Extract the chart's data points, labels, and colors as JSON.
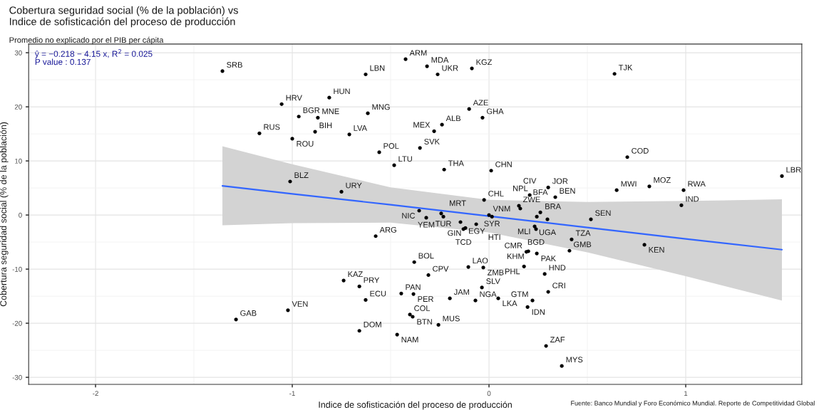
{
  "chart_data": {
    "type": "scatter",
    "title": "Cobertura seguridad social (% de la población) vs\nIndice de sofisticación del proceso de producción",
    "subtitle": "Promedio no explicado por el PIB per cápita",
    "xlabel": "Indice de sofisticación del proceso de producción",
    "ylabel": "Cobertura seguridad social (% de la población)",
    "xlim": [
      -2.34,
      1.59
    ],
    "ylim": [
      -31.3,
      31.6
    ],
    "xticks": [
      -2,
      -1,
      0,
      1
    ],
    "yticks": [
      -30,
      -20,
      -10,
      0,
      10,
      20,
      30
    ],
    "grid": true,
    "series": [
      {
        "marker": "circle",
        "color": "#000000",
        "x": [
          -0.424,
          -0.315,
          -1.355,
          -0.627,
          -0.261,
          -0.087,
          0.638,
          -0.812,
          -1.054,
          -0.967,
          -0.87,
          -0.616,
          -0.101,
          -0.033,
          -0.239,
          -1.167,
          -0.884,
          -0.71,
          -1.0,
          -0.279,
          -0.351,
          -0.558,
          -0.482,
          -0.228,
          0.011,
          0.703,
          1.489,
          -1.011,
          -0.75,
          -0.355,
          -0.243,
          -0.232,
          -0.319,
          -0.145,
          -0.065,
          -0.12,
          -0.13,
          0.0,
          0.015,
          -0.025,
          0.152,
          0.159,
          0.207,
          0.301,
          0.337,
          0.649,
          0.815,
          0.989,
          0.978,
          0.243,
          0.261,
          0.297,
          0.232,
          0.239,
          0.518,
          0.42,
          0.409,
          0.79,
          0.19,
          0.2,
          0.243,
          -0.576,
          0.178,
          -0.105,
          -0.029,
          0.283,
          -0.308,
          -0.38,
          -0.036,
          0.301,
          0.221,
          -0.199,
          -0.069,
          0.047,
          0.196,
          -0.739,
          -0.659,
          -0.446,
          -0.384,
          -0.627,
          -1.022,
          -1.286,
          -0.402,
          -0.388,
          -0.257,
          -0.659,
          -0.467,
          0.29,
          0.37
        ],
        "values": [
          28.8,
          27.5,
          26.6,
          26.0,
          26.0,
          27.1,
          26.1,
          21.7,
          20.5,
          18.2,
          18.0,
          18.8,
          19.6,
          18.0,
          16.7,
          15.1,
          15.4,
          14.9,
          14.1,
          15.5,
          12.4,
          11.6,
          9.2,
          8.4,
          8.2,
          10.7,
          7.2,
          6.2,
          4.3,
          0.8,
          0.3,
          -0.3,
          -0.5,
          -1.3,
          -1.7,
          -2.4,
          -2.6,
          0.0,
          -0.3,
          2.8,
          1.7,
          1.2,
          3.7,
          5.1,
          3.3,
          4.6,
          5.3,
          4.6,
          1.8,
          -0.3,
          0.5,
          -0.8,
          -2.1,
          -2.6,
          -0.8,
          -4.5,
          -6.6,
          -5.5,
          -6.8,
          -6.7,
          -7.1,
          -3.9,
          -9.5,
          -9.6,
          -9.7,
          -10.9,
          -11.1,
          -8.7,
          -13.4,
          -14.2,
          -15.8,
          -15.4,
          -15.8,
          -15.4,
          -17.0,
          -12.1,
          -13.2,
          -14.5,
          -14.6,
          -15.7,
          -17.6,
          -19.3,
          -18.4,
          -18.8,
          -20.3,
          -21.4,
          -22.1,
          -24.2,
          -27.9
        ]
      },
      {
        "type": "line",
        "marker": "none",
        "color": "#3366ff",
        "x": [
          -1.355,
          -1,
          -0.5,
          0,
          0.5,
          1,
          1.489
        ],
        "values": [
          5.4,
          3.9,
          1.9,
          -0.2,
          -2.3,
          -4.4,
          -6.4
        ],
        "lower": [
          -1.9,
          -1.5,
          -1.4,
          -3.2,
          -6.9,
          -11.3,
          -15.8
        ],
        "upper": [
          12.7,
          9.4,
          5.1,
          2.8,
          2.4,
          2.6,
          2.9
        ]
      }
    ],
    "annotations": [
      "ŷ = −0.218 − 4.15 x, R$^{2}$ = 0.025",
      "P value : 0.137",
      {
        "text": "ARM",
        "x": -0.424,
        "y": 28.8
      },
      {
        "text": "MDA",
        "x": -0.315,
        "y": 27.5
      },
      {
        "text": "SRB",
        "x": -1.355,
        "y": 26.6
      },
      {
        "text": "LBN",
        "x": -0.627,
        "y": 26.0
      },
      {
        "text": "UKR",
        "x": -0.261,
        "y": 26.0
      },
      {
        "text": "KGZ",
        "x": -0.087,
        "y": 27.1
      },
      {
        "text": "TJK",
        "x": 0.638,
        "y": 26.1
      },
      {
        "text": "HUN",
        "x": -0.812,
        "y": 21.7
      },
      {
        "text": "HRV",
        "x": -1.054,
        "y": 20.5
      },
      {
        "text": "BGR",
        "x": -0.967,
        "y": 18.2
      },
      {
        "text": "MNE",
        "x": -0.87,
        "y": 18.0
      },
      {
        "text": "MNG",
        "x": -0.616,
        "y": 18.8
      },
      {
        "text": "AZE",
        "x": -0.101,
        "y": 19.6
      },
      {
        "text": "GHA",
        "x": -0.033,
        "y": 18.0
      },
      {
        "text": "ALB",
        "x": -0.239,
        "y": 16.7
      },
      {
        "text": "RUS",
        "x": -1.167,
        "y": 15.1
      },
      {
        "text": "BIH",
        "x": -0.884,
        "y": 15.4
      },
      {
        "text": "LVA",
        "x": -0.71,
        "y": 14.9
      },
      {
        "text": "ROU",
        "x": -1.0,
        "y": 14.1
      },
      {
        "text": "MEX",
        "x": -0.279,
        "y": 15.5
      },
      {
        "text": "SVK",
        "x": -0.351,
        "y": 12.4
      },
      {
        "text": "POL",
        "x": -0.558,
        "y": 11.6
      },
      {
        "text": "LTU",
        "x": -0.482,
        "y": 9.2
      },
      {
        "text": "THA",
        "x": -0.228,
        "y": 8.4
      },
      {
        "text": "CHN",
        "x": 0.011,
        "y": 8.2
      },
      {
        "text": "COD",
        "x": 0.703,
        "y": 10.7
      },
      {
        "text": "LBR",
        "x": 1.489,
        "y": 7.2
      },
      {
        "text": "BLZ",
        "x": -1.011,
        "y": 6.2
      },
      {
        "text": "URY",
        "x": -0.75,
        "y": 4.3
      },
      {
        "text": "NIC",
        "x": -0.355,
        "y": 0.8
      },
      {
        "text": "MRT",
        "x": -0.243,
        "y": 0.3
      },
      {
        "text": "TUR",
        "x": -0.232,
        "y": -0.3
      },
      {
        "text": "YEM",
        "x": -0.319,
        "y": -0.5
      },
      {
        "text": "EGY",
        "x": -0.145,
        "y": -1.3
      },
      {
        "text": "HTI",
        "x": -0.065,
        "y": -1.7
      },
      {
        "text": "GIN",
        "x": -0.12,
        "y": -2.4
      },
      {
        "text": "TCD",
        "x": -0.13,
        "y": -2.6
      },
      {
        "text": "VNM",
        "x": 0.0,
        "y": 0.0
      },
      {
        "text": "SYR",
        "x": 0.015,
        "y": -0.3
      },
      {
        "text": "CHL",
        "x": -0.025,
        "y": 2.8
      },
      {
        "text": "ZWE",
        "x": 0.152,
        "y": 1.7
      },
      {
        "text": "NPL",
        "x": 0.159,
        "y": 1.2
      },
      {
        "text": "CIV",
        "x": 0.207,
        "y": 3.7
      },
      {
        "text": "JOR",
        "x": 0.301,
        "y": 5.1
      },
      {
        "text": "BEN",
        "x": 0.337,
        "y": 3.3
      },
      {
        "text": "MWI",
        "x": 0.649,
        "y": 4.6
      },
      {
        "text": "MOZ",
        "x": 0.815,
        "y": 5.3
      },
      {
        "text": "RWA",
        "x": 0.989,
        "y": 4.6
      },
      {
        "text": "IND",
        "x": 0.978,
        "y": 1.8
      },
      {
        "text": "BRA",
        "x": 0.243,
        "y": -0.3
      },
      {
        "text": "BFA",
        "x": 0.261,
        "y": 0.5
      },
      {
        "text": "UGA",
        "x": 0.297,
        "y": -0.8
      },
      {
        "text": "MLI",
        "x": 0.232,
        "y": -2.1
      },
      {
        "text": "BGD",
        "x": 0.239,
        "y": -2.6
      },
      {
        "text": "SEN",
        "x": 0.518,
        "y": -0.8
      },
      {
        "text": "TZA",
        "x": 0.42,
        "y": -4.5
      },
      {
        "text": "GMB",
        "x": 0.409,
        "y": -6.6
      },
      {
        "text": "KEN",
        "x": 0.79,
        "y": -5.5
      },
      {
        "text": "CMR",
        "x": 0.19,
        "y": -6.8
      },
      {
        "text": "KHM",
        "x": 0.2,
        "y": -6.7
      },
      {
        "text": "PAK",
        "x": 0.243,
        "y": -7.1
      },
      {
        "text": "ARG",
        "x": -0.576,
        "y": -3.9
      },
      {
        "text": "PHL",
        "x": 0.178,
        "y": -9.5
      },
      {
        "text": "LAO",
        "x": -0.105,
        "y": -9.6
      },
      {
        "text": "ZMB",
        "x": -0.029,
        "y": -9.7
      },
      {
        "text": "HND",
        "x": 0.283,
        "y": -10.9
      },
      {
        "text": "CPV",
        "x": -0.308,
        "y": -11.1
      },
      {
        "text": "BOL",
        "x": -0.38,
        "y": -8.7
      },
      {
        "text": "SLV",
        "x": -0.036,
        "y": -13.4
      },
      {
        "text": "CRI",
        "x": 0.301,
        "y": -14.2
      },
      {
        "text": "GTM",
        "x": 0.221,
        "y": -15.8
      },
      {
        "text": "JAM",
        "x": -0.199,
        "y": -15.4
      },
      {
        "text": "NGA",
        "x": -0.069,
        "y": -15.8
      },
      {
        "text": "LKA",
        "x": 0.047,
        "y": -15.4
      },
      {
        "text": "IDN",
        "x": 0.196,
        "y": -17.0
      },
      {
        "text": "KAZ",
        "x": -0.739,
        "y": -12.1
      },
      {
        "text": "PRY",
        "x": -0.659,
        "y": -13.2
      },
      {
        "text": "PAN",
        "x": -0.446,
        "y": -14.5
      },
      {
        "text": "PER",
        "x": -0.384,
        "y": -14.6
      },
      {
        "text": "ECU",
        "x": -0.627,
        "y": -15.7
      },
      {
        "text": "VEN",
        "x": -1.022,
        "y": -17.6
      },
      {
        "text": "GAB",
        "x": -1.286,
        "y": -19.3
      },
      {
        "text": "COL",
        "x": -0.402,
        "y": -18.4
      },
      {
        "text": "BTN",
        "x": -0.388,
        "y": -18.8
      },
      {
        "text": "MUS",
        "x": -0.257,
        "y": -20.3
      },
      {
        "text": "DOM",
        "x": -0.659,
        "y": -21.4
      },
      {
        "text": "NAM",
        "x": -0.467,
        "y": -22.1
      },
      {
        "text": "ZAF",
        "x": 0.29,
        "y": -24.2
      },
      {
        "text": "MYS",
        "x": 0.37,
        "y": -27.9
      },
      "Fuente: Banco Mundial y Foro Económico Mundial. Reporte de Competitividad Global"
    ]
  }
}
